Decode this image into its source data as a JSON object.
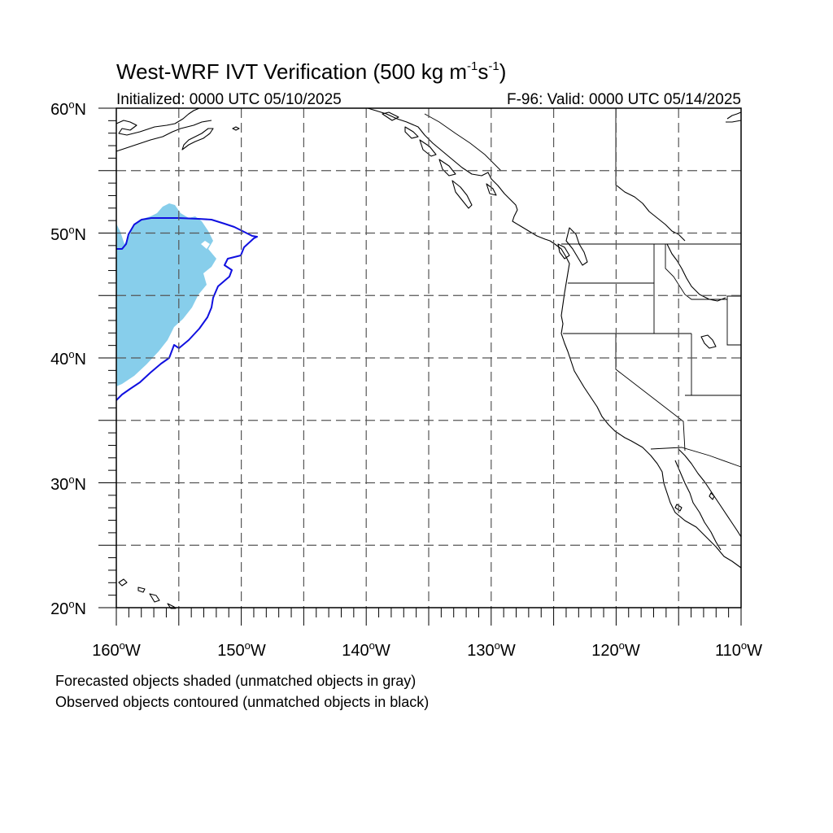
{
  "title": {
    "main": "West-WRF IVT Verification (500 kg m",
    "sup1": "-1",
    "mid": "s",
    "sup2": "-1",
    "end": ")"
  },
  "subtitle_left": "Initialized: 0000 UTC 05/10/2025",
  "subtitle_right": "F-96: Valid: 0000 UTC 05/14/2025",
  "map": {
    "lon_range": [
      -160,
      -110
    ],
    "lat_range": [
      20,
      60
    ],
    "grid_spacing_deg": 5,
    "grid": "dashed",
    "lat_labels": [
      {
        "num": "60",
        "deg": "o",
        "hem": "N"
      },
      {
        "num": "50",
        "deg": "o",
        "hem": "N"
      },
      {
        "num": "40",
        "deg": "o",
        "hem": "N"
      },
      {
        "num": "30",
        "deg": "o",
        "hem": "N"
      },
      {
        "num": "20",
        "deg": "o",
        "hem": "N"
      }
    ],
    "lon_labels": [
      {
        "num": "160",
        "deg": "o",
        "hem": "W"
      },
      {
        "num": "150",
        "deg": "o",
        "hem": "W"
      },
      {
        "num": "140",
        "deg": "o",
        "hem": "W"
      },
      {
        "num": "130",
        "deg": "o",
        "hem": "W"
      },
      {
        "num": "120",
        "deg": "o",
        "hem": "W"
      },
      {
        "num": "110",
        "deg": "o",
        "hem": "W"
      }
    ],
    "forecast_object_color": "#87ceeb",
    "observed_contour_color": "#1010e0",
    "coastline_color": "#000000"
  },
  "footnotes": [
    "Forecasted objects shaded (unmatched objects in gray)",
    "Observed objects contoured (unmatched objects in black)"
  ]
}
